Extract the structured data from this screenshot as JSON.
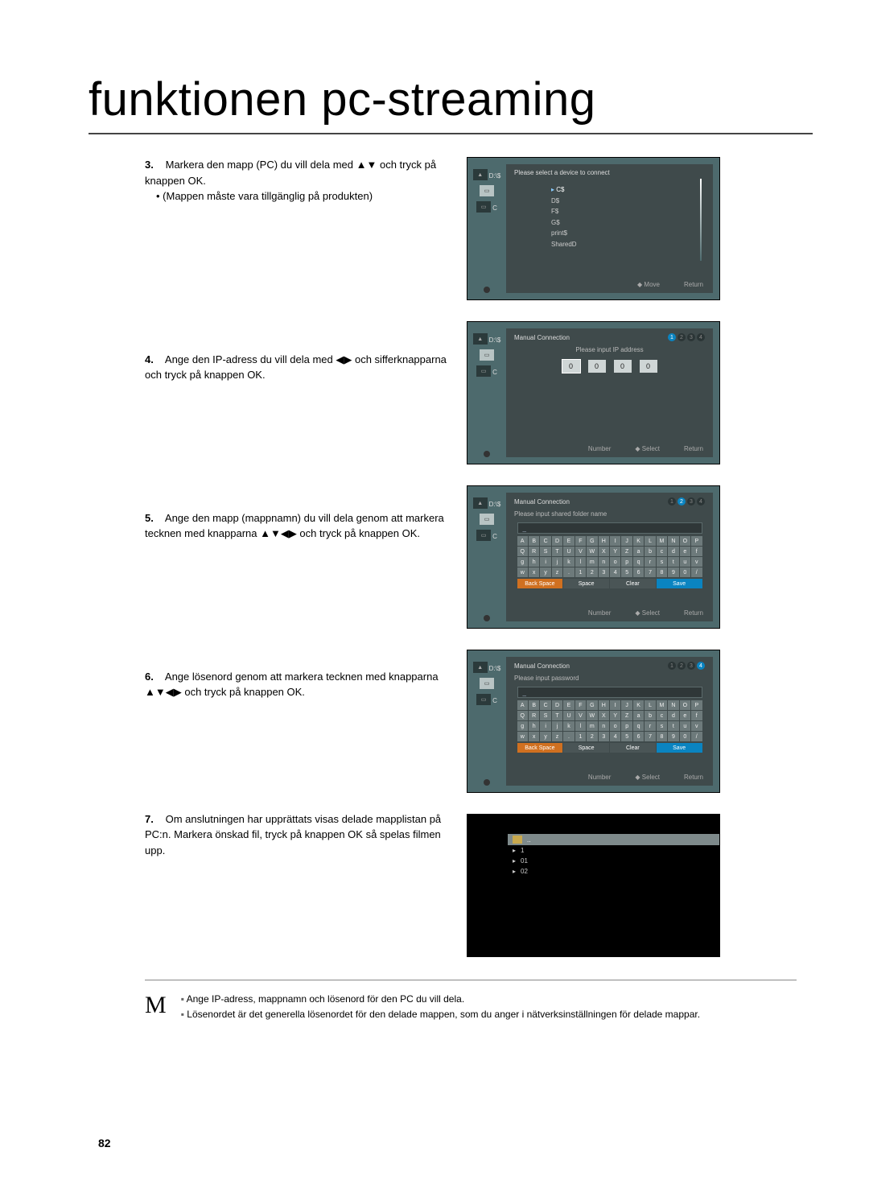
{
  "title": "funktionen pc-streaming",
  "page_number": "82",
  "steps": {
    "s3": {
      "num": "3.",
      "text": "Markera den mapp (PC) du vill dela med ▲▼ och tryck på knappen OK.",
      "bullet": "(Mappen måste vara tillgänglig på produkten)"
    },
    "s4": {
      "num": "4.",
      "text": "Ange den IP-adress du vill dela med ◀▶ och sifferknapparna och tryck på knappen OK."
    },
    "s5": {
      "num": "5.",
      "text": "Ange den mapp (mappnamn) du vill dela genom att markera tecknen med knapparna ▲▼◀▶ och tryck på knappen OK."
    },
    "s6": {
      "num": "6.",
      "text": "Ange lösenord genom att markera tecknen med knapparna ▲▼◀▶ och tryck på knappen OK."
    },
    "s7": {
      "num": "7.",
      "text": "Om anslutningen har upprättats visas delade mapplistan på PC:n. Markera önskad fil, tryck på knappen OK så spelas filmen upp."
    }
  },
  "notes": {
    "n1": "Ange IP-adress, mappnamn och lösenord för den PC du vill dela.",
    "n2": "Lösenordet är det generella lösenordet för den delade mappen, som du anger i nätverksinställningen för delade mappar."
  },
  "panel1": {
    "title": "Please select a device to connect",
    "side_top": "D:\\$",
    "items": [
      "C$",
      "D$",
      "F$",
      "G$",
      "print$",
      "SharedD"
    ],
    "footer_left": "Move",
    "footer_right": "Return"
  },
  "panel2": {
    "title": "Manual Connection",
    "subtitle": "Please input IP address",
    "ip": [
      "0",
      "0",
      "0",
      "0"
    ],
    "footer_left": "Number",
    "footer_mid": "Select",
    "footer_right": "Return",
    "active_step": 1
  },
  "panel3": {
    "title": "Manual Connection",
    "subtitle": "Please input shared folder name",
    "active_step": 2,
    "keys_row1": [
      "A",
      "B",
      "C",
      "D",
      "E",
      "F",
      "G",
      "H",
      "I",
      "J",
      "K",
      "L",
      "M",
      "N",
      "O",
      "P"
    ],
    "keys_row2": [
      "Q",
      "R",
      "S",
      "T",
      "U",
      "V",
      "W",
      "X",
      "Y",
      "Z",
      "a",
      "b",
      "c",
      "d",
      "e",
      "f"
    ],
    "keys_row3": [
      "g",
      "h",
      "i",
      "j",
      "k",
      "l",
      "m",
      "n",
      "o",
      "p",
      "q",
      "r",
      "s",
      "t",
      "u",
      "v"
    ],
    "keys_row4": [
      "w",
      "x",
      "y",
      "z",
      ".",
      "1",
      "2",
      "3",
      "4",
      "5",
      "6",
      "7",
      "8",
      "9",
      "0",
      "/"
    ],
    "btns": [
      "Back Space",
      "Space",
      "Clear",
      "Save"
    ],
    "footer_left": "Number",
    "footer_mid": "Select",
    "footer_right": "Return"
  },
  "panel4": {
    "title": "Manual Connection",
    "subtitle": "Please input password",
    "active_step": 4,
    "footer_left": "Number",
    "footer_mid": "Select",
    "footer_right": "Return"
  },
  "panel5": {
    "items": [
      "..",
      "1",
      "01",
      "02"
    ]
  },
  "colors": {
    "panel_bg": "#4d6a6d",
    "panel_inner": "#3f4a4b",
    "accent_blue": "#0a84c1",
    "ip_cell": "#cfd6d6"
  }
}
